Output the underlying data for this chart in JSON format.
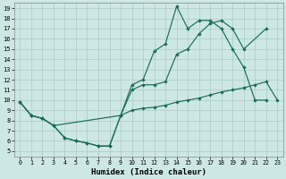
{
  "xlabel": "Humidex (Indice chaleur)",
  "bg_color": "#cde8e4",
  "grid_color": "#b0ceca",
  "line_color": "#1a6b5a",
  "xlim": [
    -0.5,
    23.5
  ],
  "ylim": [
    4.5,
    19.5
  ],
  "xticks": [
    0,
    1,
    2,
    3,
    4,
    5,
    6,
    7,
    8,
    9,
    10,
    11,
    12,
    13,
    14,
    15,
    16,
    17,
    18,
    19,
    20,
    21,
    22,
    23
  ],
  "yticks": [
    5,
    6,
    7,
    8,
    9,
    10,
    11,
    12,
    13,
    14,
    15,
    16,
    17,
    18,
    19
  ],
  "line1_x": [
    0,
    1,
    2,
    3,
    4,
    5,
    6,
    7,
    8,
    9,
    10,
    11,
    12,
    13,
    14,
    15,
    16,
    17,
    18,
    19,
    20,
    21,
    22
  ],
  "line1_y": [
    9.8,
    8.5,
    8.2,
    7.5,
    6.3,
    6.0,
    5.8,
    5.5,
    5.5,
    8.5,
    11.5,
    12.0,
    14.8,
    15.5,
    19.2,
    17.0,
    17.8,
    17.8,
    17.0,
    15.0,
    13.2,
    10.0,
    10.0
  ],
  "line2_x": [
    0,
    1,
    2,
    3,
    9,
    10,
    11,
    12,
    13,
    14,
    15,
    16,
    17,
    18,
    19,
    20,
    22
  ],
  "line2_y": [
    9.8,
    8.5,
    8.2,
    7.5,
    8.5,
    11.0,
    11.5,
    11.5,
    11.8,
    14.5,
    15.0,
    16.5,
    17.5,
    17.8,
    17.0,
    15.0,
    17.0
  ],
  "line3_x": [
    0,
    1,
    2,
    3,
    4,
    5,
    6,
    7,
    8,
    9,
    10,
    11,
    12,
    13,
    14,
    15,
    16,
    17,
    18,
    19,
    20,
    21,
    22,
    23
  ],
  "line3_y": [
    9.8,
    8.5,
    8.2,
    7.5,
    6.3,
    6.0,
    5.8,
    5.5,
    5.5,
    8.5,
    9.0,
    9.2,
    9.3,
    9.5,
    9.8,
    10.0,
    10.2,
    10.5,
    10.8,
    11.0,
    11.2,
    11.5,
    11.8,
    10.0
  ]
}
